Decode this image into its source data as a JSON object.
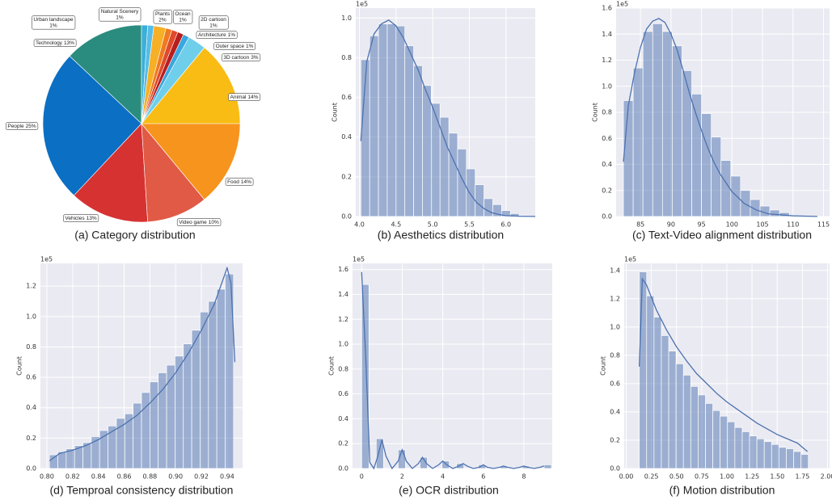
{
  "chart_data": [
    {
      "type": "pie",
      "title": "(a) Category distribution",
      "categories": [
        "Technology",
        "People",
        "Vehicles",
        "Video game",
        "Food",
        "Animal",
        "3D cartoon",
        "Outer space",
        "Architecture",
        "2D cartoon",
        "Ocean",
        "Plants",
        "Natural Scenery",
        "Urban landscape"
      ],
      "values": [
        13,
        25,
        13,
        10,
        14,
        14,
        3,
        1,
        1,
        1,
        1,
        2,
        1,
        1
      ],
      "value_labels": [
        "13%",
        "25%",
        "13%",
        "10%",
        "14%",
        "14%",
        "3%",
        "1%",
        "1%",
        "1%",
        "1%",
        "2%",
        "1%",
        "1%"
      ],
      "colors": [
        "#2a8c7e",
        "#0b6fc4",
        "#d63232",
        "#e05a45",
        "#f7941d",
        "#f9bc15",
        "#6fcfeb",
        "#3aa7e0",
        "#b81e1e",
        "#e04a2a",
        "#f07a20",
        "#f6b026",
        "#55bde8",
        "#3aafd8"
      ]
    },
    {
      "type": "histogram",
      "title": "(b) Aesthetics distribution",
      "ylabel": "Count",
      "offset_label": "1e5",
      "color": "#4c72b0",
      "background": "#eaeaf2",
      "grid": true,
      "bins": [
        4.02,
        4.14,
        4.26,
        4.38,
        4.5,
        4.62,
        4.74,
        4.86,
        4.98,
        5.1,
        5.22,
        5.34,
        5.46,
        5.58,
        5.7,
        5.82,
        5.94,
        6.06,
        6.18,
        6.3
      ],
      "values": [
        0.79,
        0.91,
        0.97,
        0.97,
        0.96,
        0.86,
        0.76,
        0.66,
        0.57,
        0.5,
        0.42,
        0.34,
        0.24,
        0.16,
        0.09,
        0.06,
        0.03,
        0.015,
        0.005
      ],
      "kde": {
        "x": [
          4.02,
          4.1,
          4.2,
          4.3,
          4.4,
          4.5,
          4.6,
          4.7,
          4.8,
          4.9,
          5.0,
          5.1,
          5.2,
          5.3,
          5.4,
          5.5,
          5.6,
          5.7,
          5.8,
          5.9,
          6.0,
          6.2,
          6.4
        ],
        "values": [
          0.38,
          0.78,
          0.92,
          0.97,
          0.99,
          0.96,
          0.9,
          0.82,
          0.74,
          0.64,
          0.55,
          0.45,
          0.35,
          0.27,
          0.19,
          0.12,
          0.07,
          0.04,
          0.02,
          0.01,
          0.004,
          0.001,
          0.0
        ]
      },
      "xlim": [
        3.95,
        6.4
      ],
      "xticks": [
        {
          "value": 4,
          "label": "4.0"
        },
        4.5,
        {
          "value": 5,
          "label": "5.0"
        },
        5.5,
        {
          "value": 6,
          "label": "6.0"
        }
      ],
      "ylim": [
        0,
        1.05
      ],
      "yticks": [
        {
          "value": 0,
          "label": "0.0"
        },
        0.2,
        0.4,
        0.6,
        0.8,
        {
          "value": 1,
          "label": "1.0"
        }
      ]
    },
    {
      "type": "histogram",
      "title": "(c) Text-Video alignment distribution",
      "ylabel": "Count",
      "offset_label": "1e5",
      "color": "#4c72b0",
      "background": "#eaeaf2",
      "grid": true,
      "bins": [
        82.2,
        83.8,
        85.4,
        87.0,
        88.6,
        90.2,
        91.8,
        93.4,
        95.0,
        96.6,
        98.2,
        99.8,
        101.4,
        103.0,
        104.6,
        106.2,
        107.8,
        109.4,
        111.0,
        112.6,
        114.2
      ],
      "values": [
        0.89,
        1.14,
        1.42,
        1.48,
        1.42,
        1.31,
        1.12,
        0.94,
        0.79,
        0.61,
        0.43,
        0.31,
        0.2,
        0.13,
        0.08,
        0.05,
        0.03,
        0.01,
        0.005,
        0.002
      ],
      "kde": {
        "x": [
          82.2,
          83,
          84,
          85,
          86,
          87,
          88,
          89,
          90,
          91,
          92,
          93,
          94,
          95,
          96,
          97,
          98,
          100,
          102,
          104,
          106,
          110,
          114
        ],
        "values": [
          0.42,
          0.85,
          1.1,
          1.3,
          1.44,
          1.5,
          1.52,
          1.49,
          1.4,
          1.28,
          1.12,
          0.95,
          0.8,
          0.66,
          0.53,
          0.42,
          0.33,
          0.19,
          0.1,
          0.05,
          0.02,
          0.005,
          0.0
        ]
      },
      "xlim": [
        81,
        116
      ],
      "xticks": [
        85,
        90,
        95,
        100,
        105,
        110,
        115
      ],
      "ylim": [
        0,
        1.6
      ],
      "yticks": [
        {
          "value": 0,
          "label": "0.0"
        },
        0.2,
        0.4,
        0.6,
        0.8,
        {
          "value": 1,
          "label": "1.0"
        },
        1.2,
        1.4,
        1.6
      ]
    },
    {
      "type": "histogram",
      "title": "(d) Temproal consistency distribution",
      "ylabel": "Count",
      "offset_label": "1e5",
      "color": "#4c72b0",
      "background": "#eaeaf2",
      "grid": true,
      "bins": [
        0.802,
        0.8085,
        0.815,
        0.8215,
        0.828,
        0.8345,
        0.841,
        0.8475,
        0.854,
        0.8605,
        0.867,
        0.8735,
        0.88,
        0.8865,
        0.893,
        0.8995,
        0.906,
        0.9125,
        0.919,
        0.9255,
        0.932,
        0.9385,
        0.945
      ],
      "values": [
        0.09,
        0.11,
        0.13,
        0.15,
        0.17,
        0.21,
        0.25,
        0.28,
        0.33,
        0.36,
        0.43,
        0.5,
        0.57,
        0.63,
        0.68,
        0.74,
        0.82,
        0.91,
        1.03,
        1.1,
        1.18,
        1.28
      ],
      "kde": {
        "x": [
          0.802,
          0.81,
          0.82,
          0.83,
          0.84,
          0.85,
          0.86,
          0.87,
          0.88,
          0.89,
          0.9,
          0.91,
          0.92,
          0.93,
          0.935,
          0.94,
          0.943,
          0.946
        ],
        "values": [
          0.05,
          0.1,
          0.12,
          0.15,
          0.19,
          0.24,
          0.29,
          0.35,
          0.43,
          0.52,
          0.63,
          0.76,
          0.91,
          1.08,
          1.2,
          1.32,
          1.22,
          0.7
        ]
      },
      "xlim": [
        0.795,
        0.952
      ],
      "xticks": [
        {
          "value": 0.8,
          "label": "0.80"
        },
        0.82,
        0.84,
        0.86,
        0.88,
        {
          "value": 0.9,
          "label": "0.90"
        },
        0.92,
        0.94
      ],
      "ylim": [
        0,
        1.35
      ],
      "yticks": [
        {
          "value": 0,
          "label": "0.0"
        },
        0.2,
        0.4,
        0.6,
        0.8,
        {
          "value": 1,
          "label": "1.0"
        },
        1.2
      ]
    },
    {
      "type": "histogram",
      "title": "(e) OCR distribution",
      "ylabel": "Count",
      "offset_label": "1e5",
      "color": "#4c72b0",
      "background": "#eaeaf2",
      "grid": true,
      "bins": [
        0,
        0.36,
        0.72,
        1.08,
        1.44,
        1.8,
        2.16,
        2.52,
        2.88,
        3.24,
        3.6,
        3.96,
        4.32,
        4.68,
        5.04,
        5.4,
        5.76,
        6.12,
        6.48,
        6.84,
        7.2,
        7.56,
        7.92,
        8.28,
        8.64,
        9.0,
        9.36
      ],
      "values": [
        1.48,
        0,
        0.24,
        0,
        0,
        0.15,
        0,
        0,
        0.09,
        0,
        0,
        0.06,
        0,
        0.04,
        0,
        0,
        0.03,
        0,
        0,
        0.02,
        0,
        0,
        0.02,
        0,
        0,
        0.03
      ],
      "kde": {
        "x": [
          0,
          0.2,
          0.4,
          0.6,
          0.8,
          1.0,
          1.2,
          1.5,
          1.8,
          2.0,
          2.2,
          2.5,
          2.8,
          3.0,
          3.2,
          3.5,
          3.8,
          4.0,
          4.2,
          4.5,
          4.8,
          5.0,
          5.2,
          5.5,
          5.8,
          6.0,
          6.2,
          6.5,
          6.8,
          7.0,
          7.2,
          7.5,
          7.8,
          8.0,
          8.2,
          8.5,
          8.8,
          9.0
        ],
        "values": [
          1.58,
          0.9,
          0.05,
          0.0,
          0.1,
          0.23,
          0.1,
          0.0,
          0.06,
          0.15,
          0.06,
          0.0,
          0.04,
          0.09,
          0.04,
          0.0,
          0.03,
          0.06,
          0.03,
          0.0,
          0.02,
          0.04,
          0.02,
          0.0,
          0.01,
          0.03,
          0.01,
          0.0,
          0.01,
          0.02,
          0.01,
          0.0,
          0.01,
          0.02,
          0.01,
          0.0,
          0.01,
          0.02
        ]
      },
      "xlim": [
        -0.45,
        9.4
      ],
      "xticks": [
        0,
        2,
        4,
        6,
        8
      ],
      "ylim": [
        0,
        1.65
      ],
      "yticks": [
        {
          "value": 0,
          "label": "0.0"
        },
        0.2,
        0.4,
        0.6,
        0.8,
        {
          "value": 1,
          "label": "1.0"
        },
        1.2,
        1.4,
        1.6
      ]
    },
    {
      "type": "histogram",
      "title": "(f) Motion distribution",
      "ylabel": "Count",
      "offset_label": "1e5",
      "color": "#4c72b0",
      "background": "#eaeaf2",
      "grid": true,
      "bins": [
        0.13,
        0.203,
        0.276,
        0.349,
        0.422,
        0.495,
        0.568,
        0.641,
        0.714,
        0.787,
        0.86,
        0.933,
        1.006,
        1.079,
        1.152,
        1.225,
        1.298,
        1.371,
        1.444,
        1.517,
        1.59,
        1.663,
        1.736,
        1.809
      ],
      "values": [
        1.39,
        1.22,
        1.07,
        0.94,
        0.83,
        0.74,
        0.66,
        0.58,
        0.52,
        0.46,
        0.41,
        0.37,
        0.33,
        0.29,
        0.26,
        0.23,
        0.21,
        0.19,
        0.17,
        0.15,
        0.14,
        0.12,
        0.1
      ],
      "kde": {
        "x": [
          0.13,
          0.16,
          0.2,
          0.3,
          0.4,
          0.5,
          0.6,
          0.7,
          0.8,
          0.9,
          1.0,
          1.1,
          1.2,
          1.3,
          1.4,
          1.5,
          1.6,
          1.7,
          1.8
        ],
        "values": [
          0.72,
          1.34,
          1.3,
          1.12,
          0.98,
          0.86,
          0.76,
          0.67,
          0.6,
          0.53,
          0.47,
          0.42,
          0.37,
          0.32,
          0.28,
          0.24,
          0.21,
          0.18,
          0.12
        ]
      },
      "xlim": [
        -0.02,
        2.02
      ],
      "xticks": [
        {
          "value": 0,
          "label": "0.00"
        },
        0.25,
        {
          "value": 0.5,
          "label": "0.50"
        },
        0.75,
        {
          "value": 1,
          "label": "1.00"
        },
        1.25,
        {
          "value": 1.5,
          "label": "1.50"
        },
        1.75,
        {
          "value": 2,
          "label": "2.00"
        }
      ],
      "ylim": [
        0,
        1.45
      ],
      "yticks": [
        {
          "value": 0,
          "label": "0.0"
        },
        0.2,
        0.4,
        0.6,
        0.8,
        {
          "value": 1,
          "label": "1.0"
        },
        1.2,
        1.4
      ]
    }
  ]
}
